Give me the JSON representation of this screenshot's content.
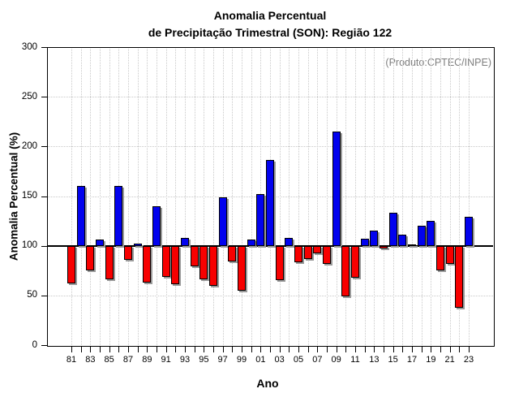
{
  "title_line1": "Anomalia Percentual",
  "title_line2": "de Precipitação Trimestral (SON): Região 122",
  "annotation": "(Produto:CPTEC/INPE)",
  "chart_data": {
    "type": "bar",
    "title": "Anomalia Percentual de Precipitação Trimestral (SON): Região 122",
    "xlabel": "Ano",
    "ylabel": "Anomalia Percentual (%)",
    "ylim": [
      0,
      300
    ],
    "yticks": [
      0,
      50,
      100,
      150,
      200,
      250,
      300
    ],
    "grid": "dotted, light gray, vertical line at every year and horizontal line every 50 units",
    "baseline": 100,
    "legend_position": "none",
    "categories": [
      "81",
      "82",
      "83",
      "84",
      "85",
      "86",
      "87",
      "88",
      "89",
      "90",
      "91",
      "92",
      "93",
      "94",
      "95",
      "96",
      "97",
      "98",
      "99",
      "00",
      "01",
      "02",
      "03",
      "04",
      "05",
      "06",
      "07",
      "08",
      "09",
      "10",
      "11",
      "12",
      "13",
      "14",
      "15",
      "16",
      "17",
      "18",
      "19",
      "20",
      "21",
      "22",
      "23"
    ],
    "x_label_step": 2,
    "values": [
      62,
      160,
      75,
      106,
      66,
      160,
      86,
      102,
      63,
      140,
      69,
      61,
      108,
      79,
      66,
      60,
      149,
      84,
      55,
      106,
      152,
      186,
      65,
      108,
      83,
      87,
      92,
      82,
      215,
      49,
      68,
      107,
      115,
      97,
      133,
      111,
      101,
      120,
      125,
      75,
      82,
      38,
      129
    ],
    "colors": {
      "above_baseline": "#0202ee",
      "below_baseline": "#f70000",
      "bar_border": "#000000",
      "bar_shadow": "#9a9a9a",
      "gridline": "#c9c9c9",
      "annotation_text": "#7f7f7f",
      "axis": "#000000"
    }
  }
}
